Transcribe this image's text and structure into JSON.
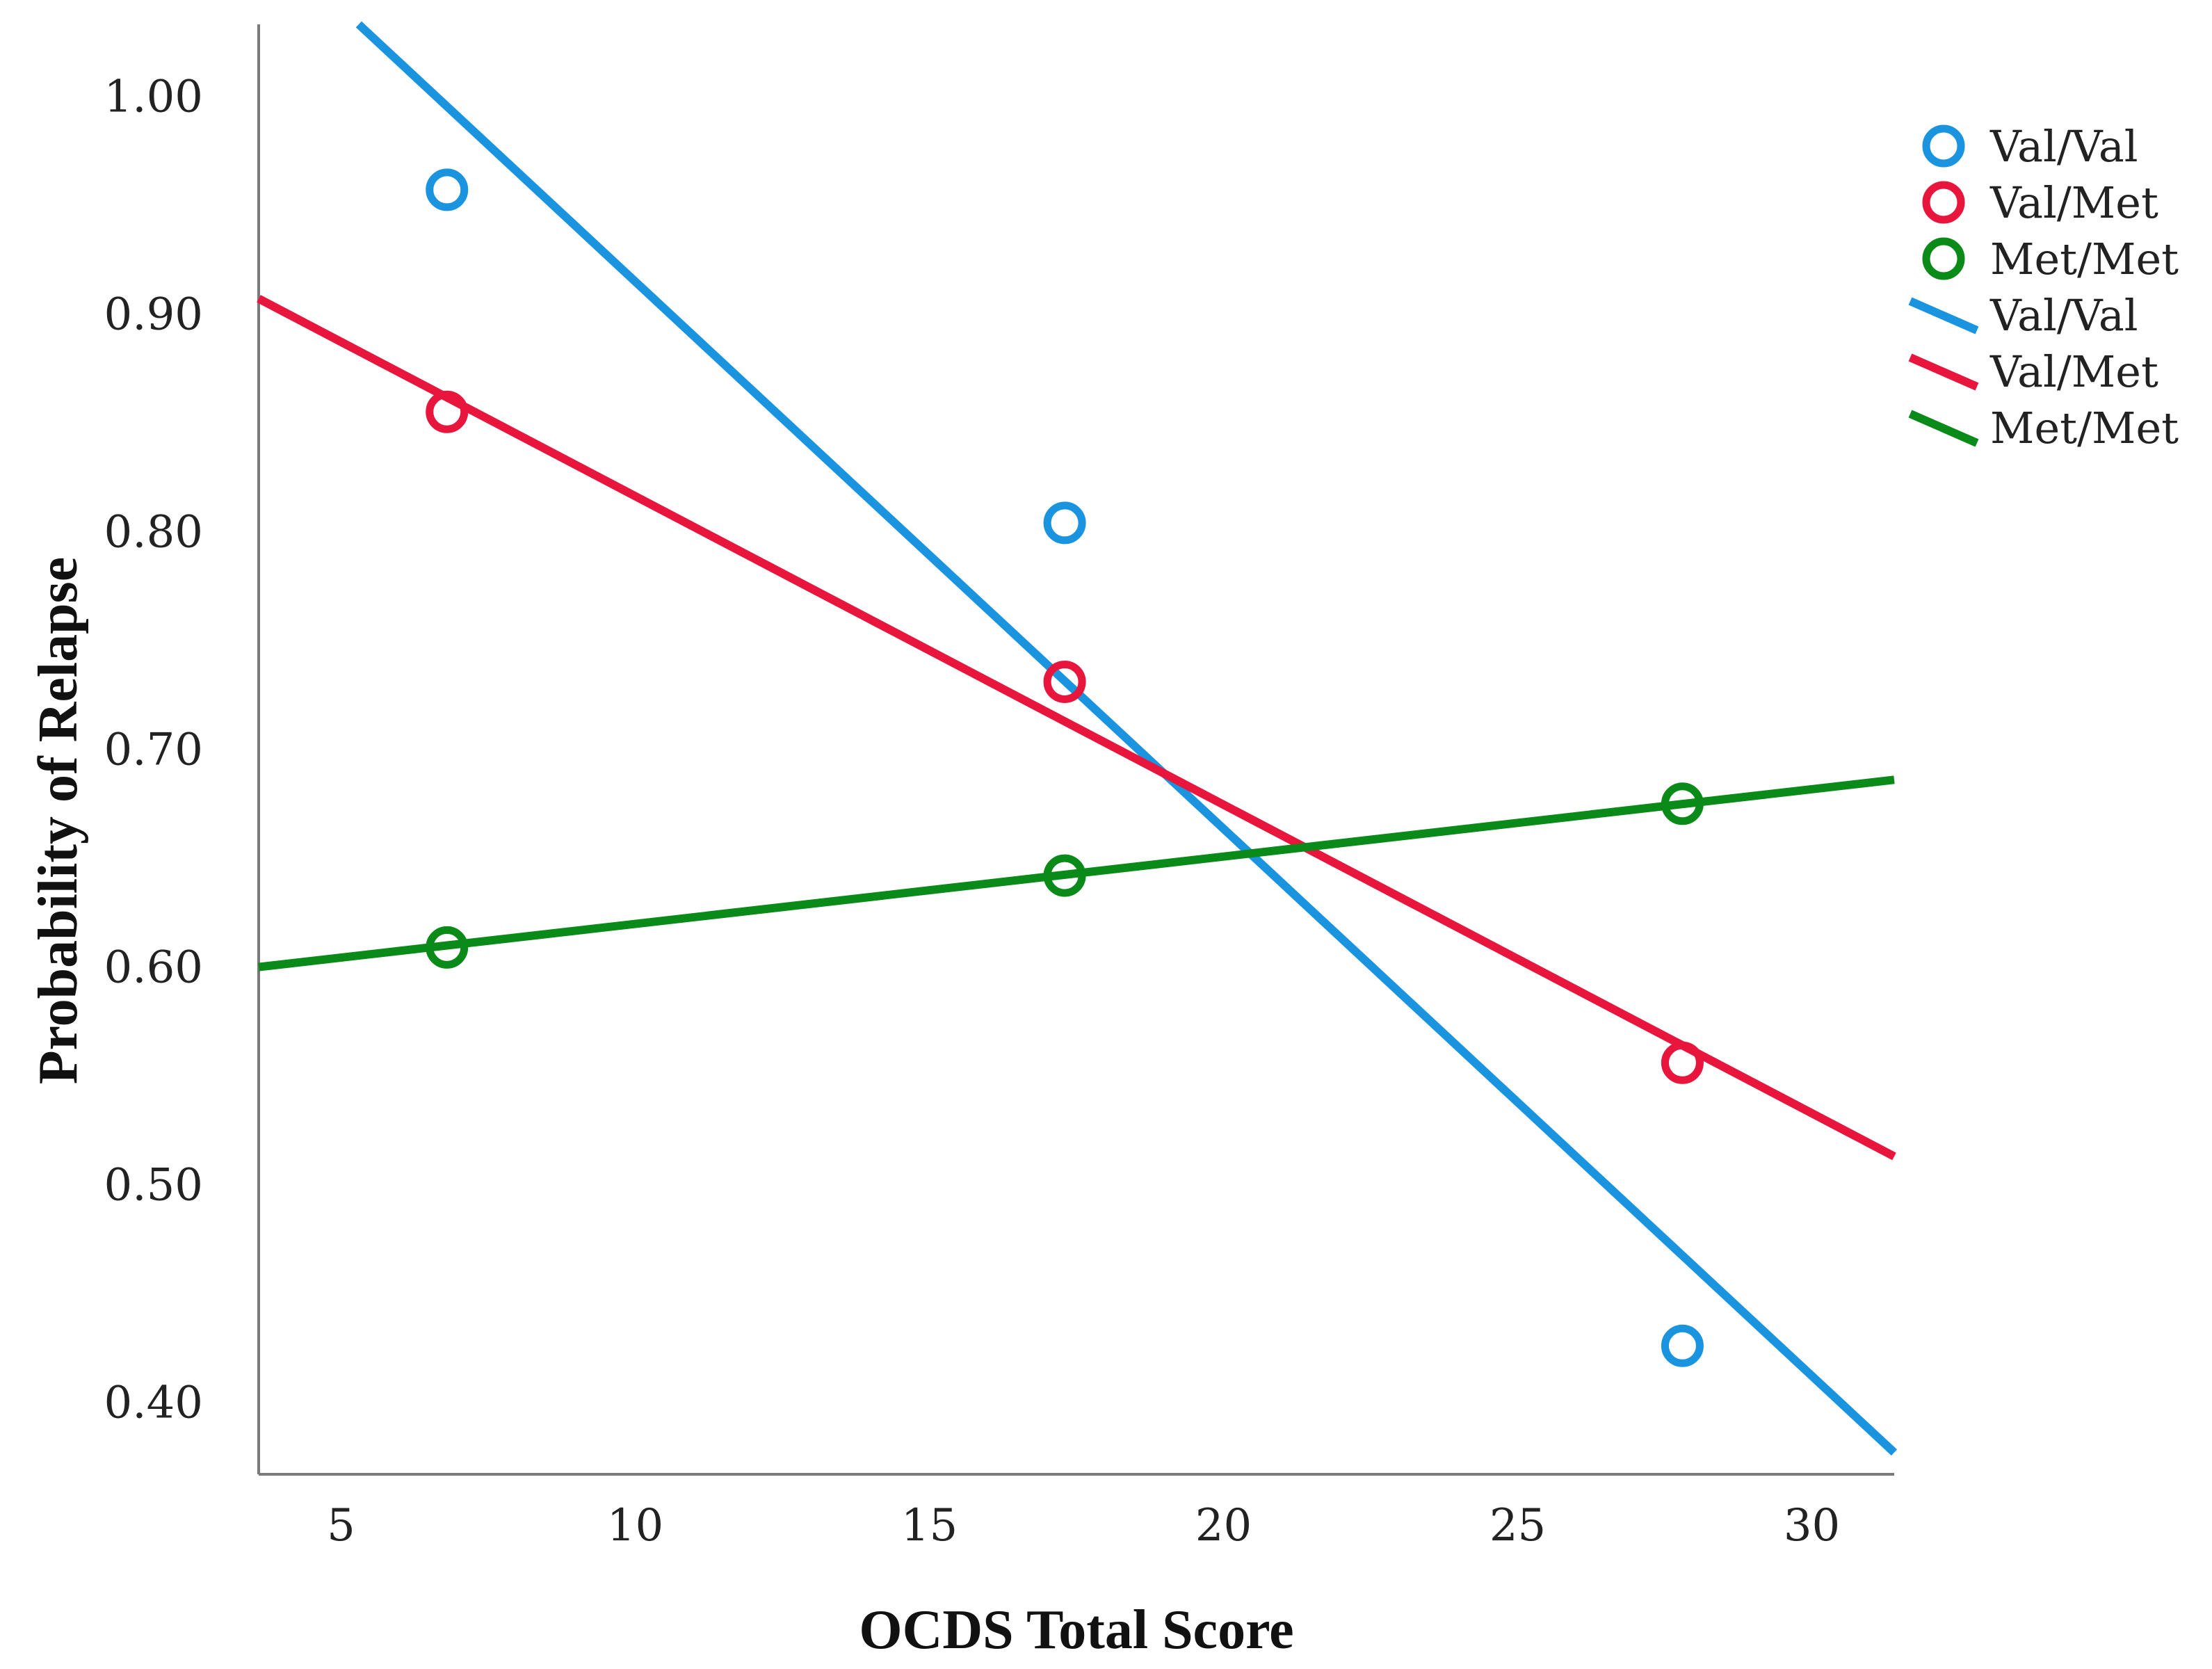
{
  "chart_data": {
    "type": "scatter",
    "title": "",
    "xlabel": "OCDS Total Score",
    "ylabel": "Probability of Relapse",
    "xlim": [
      3.6,
      31.4
    ],
    "ylim": [
      0.367,
      1.033
    ],
    "xticks": [
      5,
      10,
      15,
      20,
      25,
      30
    ],
    "xtick_labels": [
      "5",
      "10",
      "15",
      "20",
      "25",
      "30"
    ],
    "yticks": [
      0.4,
      0.5,
      0.6,
      0.7,
      0.8,
      0.9,
      1.0
    ],
    "ytick_labels": [
      "0.40",
      "0.50",
      "0.60",
      "0.70",
      "0.80",
      "0.90",
      "1.00"
    ],
    "grid": false,
    "legend_position": "top-right",
    "series": [
      {
        "name": "Val/Val",
        "color": "#1b94e0",
        "x": [
          6.8,
          17.3,
          27.8
        ],
        "y": [
          0.957,
          0.804,
          0.426
        ],
        "fit": {
          "x": [
            5.3,
            31.4
          ],
          "y": [
            1.033,
            0.377
          ]
        }
      },
      {
        "name": "Val/Met",
        "color": "#e8153c",
        "x": [
          6.8,
          17.3,
          27.8
        ],
        "y": [
          0.855,
          0.731,
          0.556
        ],
        "fit": {
          "x": [
            3.6,
            31.4
          ],
          "y": [
            0.907,
            0.513
          ]
        }
      },
      {
        "name": "Met/Met",
        "color": "#0a8a18",
        "x": [
          6.8,
          17.3,
          27.8
        ],
        "y": [
          0.609,
          0.642,
          0.675
        ],
        "fit": {
          "x": [
            3.6,
            31.4
          ],
          "y": [
            0.6,
            0.686
          ]
        }
      }
    ],
    "legend": {
      "markers": [
        "Val/Val",
        "Val/Met",
        "Met/Met"
      ],
      "lines": [
        "Val/Val",
        "Val/Met",
        "Met/Met"
      ]
    }
  }
}
